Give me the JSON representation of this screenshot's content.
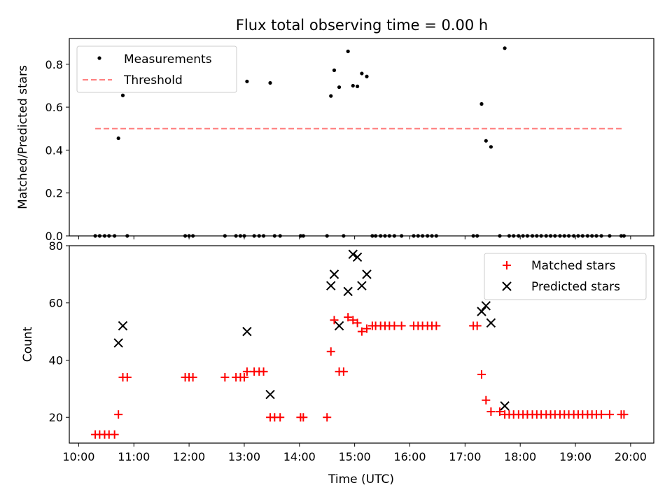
{
  "chart_data": [
    {
      "type": "scatter",
      "title": "Flux total observing time = 0.00 h",
      "xlabel": "",
      "ylabel": "Matched/Predicted stars",
      "xlim": [
        9.83,
        20.42
      ],
      "ylim": [
        0.0,
        0.92
      ],
      "yticks": [
        0.0,
        0.2,
        0.4,
        0.6,
        0.8
      ],
      "ytick_labels": [
        "0.0",
        "0.2",
        "0.4",
        "0.6",
        "0.8"
      ],
      "xticks": [
        10,
        11,
        12,
        13,
        14,
        15,
        16,
        17,
        18,
        19,
        20
      ],
      "legend_position": "top-left",
      "threshold": {
        "name": "Threshold",
        "value": 0.5,
        "x_range": [
          10.3,
          19.87
        ],
        "color": "#ff7f7f"
      },
      "series": [
        {
          "name": "Measurements",
          "color": "#000000",
          "points": [
            [
              10.3,
              0
            ],
            [
              10.38,
              0
            ],
            [
              10.47,
              0
            ],
            [
              10.55,
              0
            ],
            [
              10.65,
              0
            ],
            [
              10.72,
              0.455
            ],
            [
              10.8,
              0.655
            ],
            [
              10.88,
              0
            ],
            [
              11.93,
              0
            ],
            [
              12.0,
              0
            ],
            [
              12.07,
              0
            ],
            [
              12.65,
              0
            ],
            [
              12.85,
              0
            ],
            [
              12.93,
              0
            ],
            [
              13.0,
              0
            ],
            [
              13.05,
              0.72
            ],
            [
              13.18,
              0
            ],
            [
              13.27,
              0
            ],
            [
              13.35,
              0
            ],
            [
              13.47,
              0.713
            ],
            [
              13.55,
              0
            ],
            [
              13.65,
              0
            ],
            [
              14.02,
              0
            ],
            [
              14.07,
              0
            ],
            [
              14.5,
              0
            ],
            [
              14.57,
              0.652
            ],
            [
              14.63,
              0.772
            ],
            [
              14.72,
              0.693
            ],
            [
              14.8,
              0
            ],
            [
              14.88,
              0.86
            ],
            [
              14.97,
              0.7
            ],
            [
              15.05,
              0.697
            ],
            [
              15.13,
              0.757
            ],
            [
              15.22,
              0.743
            ],
            [
              15.32,
              0
            ],
            [
              15.38,
              0
            ],
            [
              15.47,
              0
            ],
            [
              15.55,
              0
            ],
            [
              15.63,
              0
            ],
            [
              15.72,
              0
            ],
            [
              15.85,
              0
            ],
            [
              16.07,
              0
            ],
            [
              16.15,
              0
            ],
            [
              16.23,
              0
            ],
            [
              16.32,
              0
            ],
            [
              16.4,
              0
            ],
            [
              16.48,
              0
            ],
            [
              17.15,
              0
            ],
            [
              17.22,
              0
            ],
            [
              17.3,
              0.615
            ],
            [
              17.38,
              0.443
            ],
            [
              17.47,
              0.415
            ],
            [
              17.63,
              0
            ],
            [
              17.72,
              0.875
            ],
            [
              17.8,
              0
            ],
            [
              17.88,
              0
            ],
            [
              17.97,
              0
            ],
            [
              18.05,
              0
            ],
            [
              18.13,
              0
            ],
            [
              18.22,
              0
            ],
            [
              18.3,
              0
            ],
            [
              18.38,
              0
            ],
            [
              18.47,
              0
            ],
            [
              18.55,
              0
            ],
            [
              18.63,
              0
            ],
            [
              18.72,
              0
            ],
            [
              18.8,
              0
            ],
            [
              18.88,
              0
            ],
            [
              18.97,
              0
            ],
            [
              19.05,
              0
            ],
            [
              19.13,
              0
            ],
            [
              19.22,
              0
            ],
            [
              19.3,
              0
            ],
            [
              19.38,
              0
            ],
            [
              19.47,
              0
            ],
            [
              19.62,
              0
            ],
            [
              19.83,
              0
            ],
            [
              19.88,
              0
            ]
          ]
        }
      ]
    },
    {
      "type": "scatter",
      "title": "",
      "xlabel": "Time (UTC)",
      "ylabel": "Count",
      "xlim": [
        9.83,
        20.42
      ],
      "ylim": [
        11,
        80
      ],
      "yticks": [
        20,
        40,
        60,
        80
      ],
      "ytick_labels": [
        "20",
        "40",
        "60",
        "80"
      ],
      "xticks": [
        10,
        11,
        12,
        13,
        14,
        15,
        16,
        17,
        18,
        19,
        20
      ],
      "xtick_labels": [
        "10:00",
        "11:00",
        "12:00",
        "13:00",
        "14:00",
        "15:00",
        "16:00",
        "17:00",
        "18:00",
        "19:00",
        "20:00"
      ],
      "legend_position": "top-right",
      "series": [
        {
          "name": "Matched stars",
          "marker": "plus",
          "color": "#ff0000",
          "points": [
            [
              10.3,
              14
            ],
            [
              10.38,
              14
            ],
            [
              10.47,
              14
            ],
            [
              10.55,
              14
            ],
            [
              10.65,
              14
            ],
            [
              10.72,
              21
            ],
            [
              10.8,
              34
            ],
            [
              10.88,
              34
            ],
            [
              11.93,
              34
            ],
            [
              12.0,
              34
            ],
            [
              12.07,
              34
            ],
            [
              12.65,
              34
            ],
            [
              12.85,
              34
            ],
            [
              12.93,
              34
            ],
            [
              13.0,
              34
            ],
            [
              13.05,
              36
            ],
            [
              13.18,
              36
            ],
            [
              13.27,
              36
            ],
            [
              13.35,
              36
            ],
            [
              13.47,
              20
            ],
            [
              13.55,
              20
            ],
            [
              13.65,
              20
            ],
            [
              14.02,
              20
            ],
            [
              14.07,
              20
            ],
            [
              14.5,
              20
            ],
            [
              14.57,
              43
            ],
            [
              14.63,
              54
            ],
            [
              14.72,
              36
            ],
            [
              14.8,
              36
            ],
            [
              14.88,
              55
            ],
            [
              14.97,
              54
            ],
            [
              15.05,
              53
            ],
            [
              15.13,
              50
            ],
            [
              15.22,
              51
            ],
            [
              15.32,
              52
            ],
            [
              15.38,
              52
            ],
            [
              15.47,
              52
            ],
            [
              15.55,
              52
            ],
            [
              15.63,
              52
            ],
            [
              15.72,
              52
            ],
            [
              15.85,
              52
            ],
            [
              16.07,
              52
            ],
            [
              16.15,
              52
            ],
            [
              16.23,
              52
            ],
            [
              16.32,
              52
            ],
            [
              16.4,
              52
            ],
            [
              16.48,
              52
            ],
            [
              17.15,
              52
            ],
            [
              17.22,
              52
            ],
            [
              17.3,
              35
            ],
            [
              17.38,
              26
            ],
            [
              17.47,
              22
            ],
            [
              17.63,
              22
            ],
            [
              17.72,
              21
            ],
            [
              17.8,
              21
            ],
            [
              17.88,
              21
            ],
            [
              17.97,
              21
            ],
            [
              18.05,
              21
            ],
            [
              18.13,
              21
            ],
            [
              18.22,
              21
            ],
            [
              18.3,
              21
            ],
            [
              18.38,
              21
            ],
            [
              18.47,
              21
            ],
            [
              18.55,
              21
            ],
            [
              18.63,
              21
            ],
            [
              18.72,
              21
            ],
            [
              18.8,
              21
            ],
            [
              18.88,
              21
            ],
            [
              18.97,
              21
            ],
            [
              19.05,
              21
            ],
            [
              19.13,
              21
            ],
            [
              19.22,
              21
            ],
            [
              19.3,
              21
            ],
            [
              19.38,
              21
            ],
            [
              19.47,
              21
            ],
            [
              19.62,
              21
            ],
            [
              19.83,
              21
            ],
            [
              19.88,
              21
            ]
          ]
        },
        {
          "name": "Predicted stars",
          "marker": "x",
          "color": "#000000",
          "points": [
            [
              10.72,
              46
            ],
            [
              10.8,
              52
            ],
            [
              13.05,
              50
            ],
            [
              13.47,
              28
            ],
            [
              14.57,
              66
            ],
            [
              14.63,
              70
            ],
            [
              14.72,
              52
            ],
            [
              14.88,
              64
            ],
            [
              14.97,
              77
            ],
            [
              15.05,
              76
            ],
            [
              15.13,
              66
            ],
            [
              15.22,
              70
            ],
            [
              17.3,
              57
            ],
            [
              17.38,
              59
            ],
            [
              17.47,
              53
            ],
            [
              17.72,
              24
            ]
          ]
        }
      ]
    }
  ]
}
